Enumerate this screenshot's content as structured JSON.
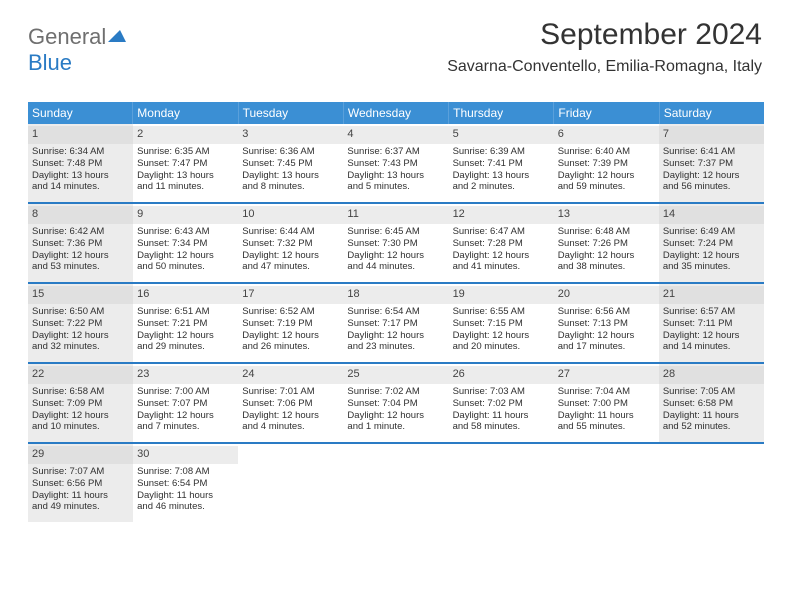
{
  "logo": {
    "word1": "General",
    "word2": "Blue"
  },
  "title": "September 2024",
  "subtitle": "Savarna-Conventello, Emilia-Romagna, Italy",
  "colors": {
    "header_bg": "#3b8fd4",
    "week_border": "#2a7bc4",
    "dim_bg": "#ececec"
  },
  "weekdays": [
    "Sunday",
    "Monday",
    "Tuesday",
    "Wednesday",
    "Thursday",
    "Friday",
    "Saturday"
  ],
  "weeks": [
    [
      {
        "n": "1",
        "dim": true,
        "sr": "Sunrise: 6:34 AM",
        "ss": "Sunset: 7:48 PM",
        "d1": "Daylight: 13 hours",
        "d2": "and 14 minutes."
      },
      {
        "n": "2",
        "sr": "Sunrise: 6:35 AM",
        "ss": "Sunset: 7:47 PM",
        "d1": "Daylight: 13 hours",
        "d2": "and 11 minutes."
      },
      {
        "n": "3",
        "sr": "Sunrise: 6:36 AM",
        "ss": "Sunset: 7:45 PM",
        "d1": "Daylight: 13 hours",
        "d2": "and 8 minutes."
      },
      {
        "n": "4",
        "sr": "Sunrise: 6:37 AM",
        "ss": "Sunset: 7:43 PM",
        "d1": "Daylight: 13 hours",
        "d2": "and 5 minutes."
      },
      {
        "n": "5",
        "sr": "Sunrise: 6:39 AM",
        "ss": "Sunset: 7:41 PM",
        "d1": "Daylight: 13 hours",
        "d2": "and 2 minutes."
      },
      {
        "n": "6",
        "sr": "Sunrise: 6:40 AM",
        "ss": "Sunset: 7:39 PM",
        "d1": "Daylight: 12 hours",
        "d2": "and 59 minutes."
      },
      {
        "n": "7",
        "dim": true,
        "sr": "Sunrise: 6:41 AM",
        "ss": "Sunset: 7:37 PM",
        "d1": "Daylight: 12 hours",
        "d2": "and 56 minutes."
      }
    ],
    [
      {
        "n": "8",
        "dim": true,
        "sr": "Sunrise: 6:42 AM",
        "ss": "Sunset: 7:36 PM",
        "d1": "Daylight: 12 hours",
        "d2": "and 53 minutes."
      },
      {
        "n": "9",
        "sr": "Sunrise: 6:43 AM",
        "ss": "Sunset: 7:34 PM",
        "d1": "Daylight: 12 hours",
        "d2": "and 50 minutes."
      },
      {
        "n": "10",
        "sr": "Sunrise: 6:44 AM",
        "ss": "Sunset: 7:32 PM",
        "d1": "Daylight: 12 hours",
        "d2": "and 47 minutes."
      },
      {
        "n": "11",
        "sr": "Sunrise: 6:45 AM",
        "ss": "Sunset: 7:30 PM",
        "d1": "Daylight: 12 hours",
        "d2": "and 44 minutes."
      },
      {
        "n": "12",
        "sr": "Sunrise: 6:47 AM",
        "ss": "Sunset: 7:28 PM",
        "d1": "Daylight: 12 hours",
        "d2": "and 41 minutes."
      },
      {
        "n": "13",
        "sr": "Sunrise: 6:48 AM",
        "ss": "Sunset: 7:26 PM",
        "d1": "Daylight: 12 hours",
        "d2": "and 38 minutes."
      },
      {
        "n": "14",
        "dim": true,
        "sr": "Sunrise: 6:49 AM",
        "ss": "Sunset: 7:24 PM",
        "d1": "Daylight: 12 hours",
        "d2": "and 35 minutes."
      }
    ],
    [
      {
        "n": "15",
        "dim": true,
        "sr": "Sunrise: 6:50 AM",
        "ss": "Sunset: 7:22 PM",
        "d1": "Daylight: 12 hours",
        "d2": "and 32 minutes."
      },
      {
        "n": "16",
        "sr": "Sunrise: 6:51 AM",
        "ss": "Sunset: 7:21 PM",
        "d1": "Daylight: 12 hours",
        "d2": "and 29 minutes."
      },
      {
        "n": "17",
        "sr": "Sunrise: 6:52 AM",
        "ss": "Sunset: 7:19 PM",
        "d1": "Daylight: 12 hours",
        "d2": "and 26 minutes."
      },
      {
        "n": "18",
        "sr": "Sunrise: 6:54 AM",
        "ss": "Sunset: 7:17 PM",
        "d1": "Daylight: 12 hours",
        "d2": "and 23 minutes."
      },
      {
        "n": "19",
        "sr": "Sunrise: 6:55 AM",
        "ss": "Sunset: 7:15 PM",
        "d1": "Daylight: 12 hours",
        "d2": "and 20 minutes."
      },
      {
        "n": "20",
        "sr": "Sunrise: 6:56 AM",
        "ss": "Sunset: 7:13 PM",
        "d1": "Daylight: 12 hours",
        "d2": "and 17 minutes."
      },
      {
        "n": "21",
        "dim": true,
        "sr": "Sunrise: 6:57 AM",
        "ss": "Sunset: 7:11 PM",
        "d1": "Daylight: 12 hours",
        "d2": "and 14 minutes."
      }
    ],
    [
      {
        "n": "22",
        "dim": true,
        "sr": "Sunrise: 6:58 AM",
        "ss": "Sunset: 7:09 PM",
        "d1": "Daylight: 12 hours",
        "d2": "and 10 minutes."
      },
      {
        "n": "23",
        "sr": "Sunrise: 7:00 AM",
        "ss": "Sunset: 7:07 PM",
        "d1": "Daylight: 12 hours",
        "d2": "and 7 minutes."
      },
      {
        "n": "24",
        "sr": "Sunrise: 7:01 AM",
        "ss": "Sunset: 7:06 PM",
        "d1": "Daylight: 12 hours",
        "d2": "and 4 minutes."
      },
      {
        "n": "25",
        "sr": "Sunrise: 7:02 AM",
        "ss": "Sunset: 7:04 PM",
        "d1": "Daylight: 12 hours",
        "d2": "and 1 minute."
      },
      {
        "n": "26",
        "sr": "Sunrise: 7:03 AM",
        "ss": "Sunset: 7:02 PM",
        "d1": "Daylight: 11 hours",
        "d2": "and 58 minutes."
      },
      {
        "n": "27",
        "sr": "Sunrise: 7:04 AM",
        "ss": "Sunset: 7:00 PM",
        "d1": "Daylight: 11 hours",
        "d2": "and 55 minutes."
      },
      {
        "n": "28",
        "dim": true,
        "sr": "Sunrise: 7:05 AM",
        "ss": "Sunset: 6:58 PM",
        "d1": "Daylight: 11 hours",
        "d2": "and 52 minutes."
      }
    ],
    [
      {
        "n": "29",
        "dim": true,
        "sr": "Sunrise: 7:07 AM",
        "ss": "Sunset: 6:56 PM",
        "d1": "Daylight: 11 hours",
        "d2": "and 49 minutes."
      },
      {
        "n": "30",
        "sr": "Sunrise: 7:08 AM",
        "ss": "Sunset: 6:54 PM",
        "d1": "Daylight: 11 hours",
        "d2": "and 46 minutes."
      },
      {
        "empty": true
      },
      {
        "empty": true
      },
      {
        "empty": true
      },
      {
        "empty": true
      },
      {
        "empty": true
      }
    ]
  ]
}
